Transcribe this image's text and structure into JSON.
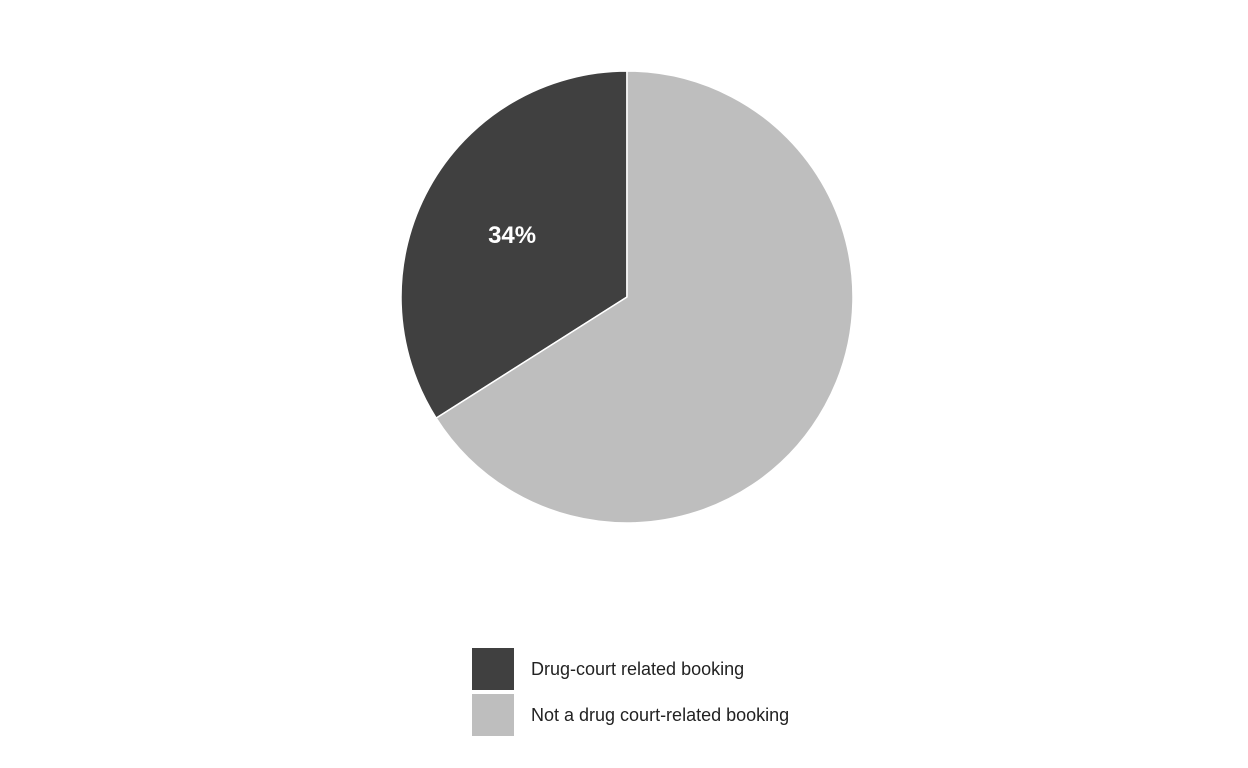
{
  "chart_data": {
    "type": "pie",
    "categories": [
      "Drug-court related booking",
      "Not a drug court-related booking"
    ],
    "values": [
      34,
      66
    ],
    "data_labels": [
      "34%",
      ""
    ],
    "colors": [
      "#404040",
      "#bebebe"
    ],
    "start_angle_deg": 0,
    "direction": "counterclockwise",
    "legend_position": "bottom",
    "title": ""
  }
}
